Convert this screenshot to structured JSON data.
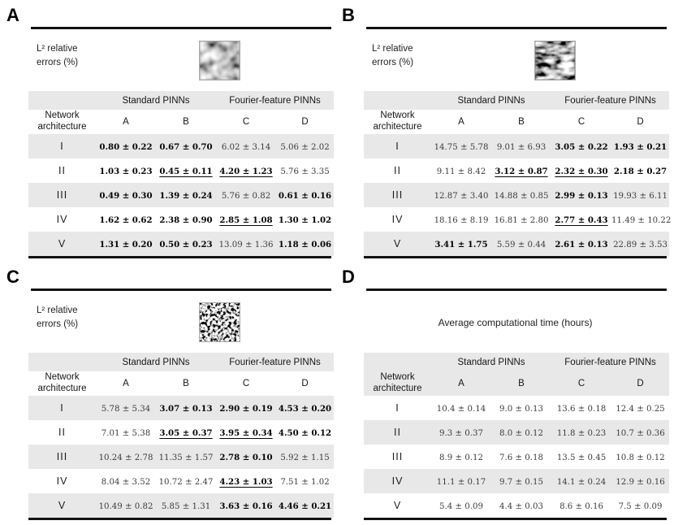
{
  "figure": {
    "description_note": "",
    "colors": {
      "row_shade": "#e8e8e8",
      "rule": "#131313",
      "value_normal": "#3c3c3c",
      "value_bold": "#050505"
    }
  },
  "panels": [
    {
      "label": "A",
      "caption": {
        "line1": "L² relative",
        "line2": "errors (%)"
      },
      "texture_kind": "smooth-gaussian-random-field-image",
      "table": {
        "group_headers": [
          "Standard PINNs",
          "Fourier-feature PINNs"
        ],
        "row_header": [
          "Network",
          "architecture"
        ],
        "col_headers": [
          "A",
          "B",
          "C",
          "D"
        ],
        "header_shade": "first",
        "data_shade": "odd",
        "rows": [
          {
            "arch": "I",
            "cells": [
              {
                "t": "0.80 ± 0.22",
                "b": true,
                "u": false
              },
              {
                "t": "0.67 ± 0.70",
                "b": true,
                "u": false
              },
              {
                "t": "6.02 ± 3.14",
                "b": false,
                "u": false
              },
              {
                "t": "5.06 ± 2.02",
                "b": false,
                "u": false
              }
            ]
          },
          {
            "arch": "II",
            "cells": [
              {
                "t": "1.03 ± 0.23",
                "b": true,
                "u": false
              },
              {
                "t": "0.45 ± 0.11",
                "b": true,
                "u": true
              },
              {
                "t": "4.20 ± 1.23",
                "b": true,
                "u": true
              },
              {
                "t": "5.76 ± 3.35",
                "b": false,
                "u": false
              }
            ]
          },
          {
            "arch": "III",
            "cells": [
              {
                "t": "0.49 ± 0.30",
                "b": true,
                "u": false
              },
              {
                "t": "1.39 ± 0.24",
                "b": true,
                "u": false
              },
              {
                "t": "5.76 ± 0.82",
                "b": false,
                "u": false
              },
              {
                "t": "0.61 ± 0.16",
                "b": true,
                "u": false
              }
            ]
          },
          {
            "arch": "IV",
            "cells": [
              {
                "t": "1.62 ± 0.62",
                "b": true,
                "u": false
              },
              {
                "t": "2.38 ± 0.90",
                "b": true,
                "u": false
              },
              {
                "t": "2.85 ± 1.08",
                "b": true,
                "u": true
              },
              {
                "t": "1.30 ± 1.02",
                "b": true,
                "u": false
              }
            ]
          },
          {
            "arch": "V",
            "cells": [
              {
                "t": "1.31 ± 0.20",
                "b": true,
                "u": false
              },
              {
                "t": "0.50 ± 0.23",
                "b": true,
                "u": false
              },
              {
                "t": "13.09 ± 1.36",
                "b": false,
                "u": false
              },
              {
                "t": "1.18 ± 0.06",
                "b": true,
                "u": false
              }
            ]
          }
        ]
      }
    },
    {
      "label": "B",
      "caption": {
        "line1": "L² relative",
        "line2": "errors (%)"
      },
      "texture_kind": "dark-streaked-random-field-image",
      "table": {
        "group_headers": [
          "Standard PINNs",
          "Fourier-feature PINNs"
        ],
        "row_header": [
          "Network",
          "architecture"
        ],
        "col_headers": [
          "A",
          "B",
          "C",
          "D"
        ],
        "header_shade": "first",
        "data_shade": "odd",
        "rows": [
          {
            "arch": "I",
            "cells": [
              {
                "t": "14.75 ± 5.78",
                "b": false,
                "u": false
              },
              {
                "t": "9.01 ± 6.93",
                "b": false,
                "u": false
              },
              {
                "t": "3.05 ± 0.22",
                "b": true,
                "u": false
              },
              {
                "t": "1.93 ± 0.21",
                "b": true,
                "u": false
              }
            ]
          },
          {
            "arch": "II",
            "cells": [
              {
                "t": "9.11 ± 8.42",
                "b": false,
                "u": false
              },
              {
                "t": "3.12 ± 0.87",
                "b": true,
                "u": true
              },
              {
                "t": "2.32 ± 0.30",
                "b": true,
                "u": true
              },
              {
                "t": "2.18 ± 0.27",
                "b": true,
                "u": false
              }
            ]
          },
          {
            "arch": "III",
            "cells": [
              {
                "t": "12.87 ± 3.40",
                "b": false,
                "u": false
              },
              {
                "t": "14.88 ± 0.85",
                "b": false,
                "u": false
              },
              {
                "t": "2.99 ± 0.13",
                "b": true,
                "u": false
              },
              {
                "t": "19.93 ± 6.11",
                "b": false,
                "u": false
              }
            ]
          },
          {
            "arch": "IV",
            "cells": [
              {
                "t": "18.16 ± 8.19",
                "b": false,
                "u": false
              },
              {
                "t": "16.81 ± 2.80",
                "b": false,
                "u": false
              },
              {
                "t": "2.77 ± 0.43",
                "b": true,
                "u": true
              },
              {
                "t": "11.49 ± 10.22",
                "b": false,
                "u": false
              }
            ]
          },
          {
            "arch": "V",
            "cells": [
              {
                "t": "3.41 ± 1.75",
                "b": true,
                "u": false
              },
              {
                "t": "5.59 ± 0.44",
                "b": false,
                "u": false
              },
              {
                "t": "2.61 ± 0.13",
                "b": true,
                "u": false
              },
              {
                "t": "22.89 ± 3.53",
                "b": false,
                "u": false
              }
            ]
          }
        ]
      }
    },
    {
      "label": "C",
      "caption": {
        "line1": "L² relative",
        "line2": "errors (%)"
      },
      "texture_kind": "speckled-noise-random-field-image",
      "table": {
        "group_headers": [
          "Standard PINNs",
          "Fourier-feature PINNs"
        ],
        "row_header": [
          "Network",
          "architecture"
        ],
        "col_headers": [
          "A",
          "B",
          "C",
          "D"
        ],
        "header_shade": "first",
        "data_shade": "odd",
        "rows": [
          {
            "arch": "I",
            "cells": [
              {
                "t": "5.78 ± 5.34",
                "b": false,
                "u": false
              },
              {
                "t": "3.07 ± 0.13",
                "b": true,
                "u": false
              },
              {
                "t": "2.90 ± 0.19",
                "b": true,
                "u": false
              },
              {
                "t": "4.53 ± 0.20",
                "b": true,
                "u": false
              }
            ]
          },
          {
            "arch": "II",
            "cells": [
              {
                "t": "7.01 ± 5.38",
                "b": false,
                "u": false
              },
              {
                "t": "3.05 ± 0.37",
                "b": true,
                "u": true
              },
              {
                "t": "3.95 ± 0.34",
                "b": true,
                "u": true
              },
              {
                "t": "4.50 ± 0.12",
                "b": true,
                "u": false
              }
            ]
          },
          {
            "arch": "III",
            "cells": [
              {
                "t": "10.24 ± 2.78",
                "b": false,
                "u": false
              },
              {
                "t": "11.35 ± 1.57",
                "b": false,
                "u": false
              },
              {
                "t": "2.78 ± 0.10",
                "b": true,
                "u": false
              },
              {
                "t": "5.92 ± 1.15",
                "b": false,
                "u": false
              }
            ]
          },
          {
            "arch": "IV",
            "cells": [
              {
                "t": "8.04 ± 3.52",
                "b": false,
                "u": false
              },
              {
                "t": "10.72 ± 2.47",
                "b": false,
                "u": false
              },
              {
                "t": "4.23 ± 1.03",
                "b": true,
                "u": true
              },
              {
                "t": "7.51 ± 1.02",
                "b": false,
                "u": false
              }
            ]
          },
          {
            "arch": "V",
            "cells": [
              {
                "t": "10.49 ± 0.82",
                "b": false,
                "u": false
              },
              {
                "t": "5.85 ± 1.31",
                "b": false,
                "u": false
              },
              {
                "t": "3.63 ± 0.16",
                "b": true,
                "u": false
              },
              {
                "t": "4.46 ± 0.21",
                "b": true,
                "u": false
              }
            ]
          }
        ]
      }
    },
    {
      "label": "D",
      "caption": {
        "center": "Average computational time (hours)"
      },
      "texture_kind": null,
      "table": {
        "group_headers": [
          "Standard PINNs",
          "Fourier-feature PINNs"
        ],
        "row_header": [
          "Network",
          "architecture"
        ],
        "col_headers": [
          "A",
          "B",
          "C",
          "D"
        ],
        "header_shade": "both",
        "data_shade": "even",
        "rows": [
          {
            "arch": "I",
            "cells": [
              {
                "t": "10.4 ± 0.14",
                "b": false,
                "u": false
              },
              {
                "t": "9.0 ± 0.13",
                "b": false,
                "u": false
              },
              {
                "t": "13.6 ± 0.18",
                "b": false,
                "u": false
              },
              {
                "t": "12.4 ± 0.25",
                "b": false,
                "u": false
              }
            ]
          },
          {
            "arch": "II",
            "cells": [
              {
                "t": "9.3 ± 0.37",
                "b": false,
                "u": false
              },
              {
                "t": "8.0 ± 0.12",
                "b": false,
                "u": false
              },
              {
                "t": "11.8 ± 0.23",
                "b": false,
                "u": false
              },
              {
                "t": "10.7 ± 0.36",
                "b": false,
                "u": false
              }
            ]
          },
          {
            "arch": "III",
            "cells": [
              {
                "t": "8.9 ± 0.12",
                "b": false,
                "u": false
              },
              {
                "t": "7.6 ± 0.18",
                "b": false,
                "u": false
              },
              {
                "t": "13.5 ± 0.45",
                "b": false,
                "u": false
              },
              {
                "t": "10.8 ± 0.12",
                "b": false,
                "u": false
              }
            ]
          },
          {
            "arch": "IV",
            "cells": [
              {
                "t": "11.1 ± 0.17",
                "b": false,
                "u": false
              },
              {
                "t": "9.7 ± 0.15",
                "b": false,
                "u": false
              },
              {
                "t": "14.1 ± 0.24",
                "b": false,
                "u": false
              },
              {
                "t": "12.9 ± 0.16",
                "b": false,
                "u": false
              }
            ]
          },
          {
            "arch": "V",
            "cells": [
              {
                "t": "5.4 ± 0.09",
                "b": false,
                "u": false
              },
              {
                "t": "4.4 ± 0.03",
                "b": false,
                "u": false
              },
              {
                "t": "8.6 ± 0.16",
                "b": false,
                "u": false
              },
              {
                "t": "7.5 ± 0.09",
                "b": false,
                "u": false
              }
            ]
          }
        ]
      }
    }
  ]
}
